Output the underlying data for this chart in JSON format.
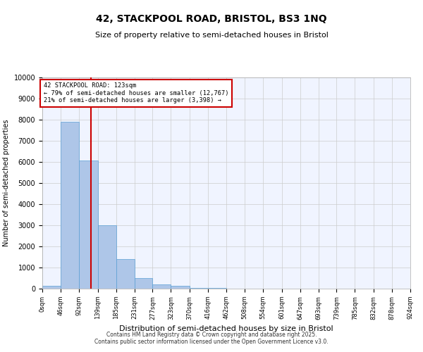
{
  "title_line1": "42, STACKPOOL ROAD, BRISTOL, BS3 1NQ",
  "title_line2": "Size of property relative to semi-detached houses in Bristol",
  "xlabel": "Distribution of semi-detached houses by size in Bristol",
  "ylabel": "Number of semi-detached properties",
  "bar_color": "#aec6e8",
  "bar_edge_color": "#5a9fd4",
  "grid_color": "#cccccc",
  "background_color": "#ffffff",
  "plot_bg_color": "#f0f4ff",
  "annotation_box_color": "#cc0000",
  "vline_color": "#cc0000",
  "annotation_title": "42 STACKPOOL ROAD: 123sqm",
  "annotation_line1": "← 79% of semi-detached houses are smaller (12,767)",
  "annotation_line2": "21% of semi-detached houses are larger (3,398) →",
  "property_size": 123,
  "footer_line1": "Contains HM Land Registry data © Crown copyright and database right 2025.",
  "footer_line2": "Contains public sector information licensed under the Open Government Licence v3.0.",
  "bin_edges": [
    0,
    46,
    92,
    139,
    185,
    231,
    277,
    323,
    370,
    416,
    462,
    508,
    554,
    601,
    647,
    693,
    739,
    785,
    832,
    878,
    924
  ],
  "bin_labels": [
    "0sqm",
    "46sqm",
    "92sqm",
    "139sqm",
    "185sqm",
    "231sqm",
    "277sqm",
    "323sqm",
    "370sqm",
    "416sqm",
    "462sqm",
    "508sqm",
    "554sqm",
    "601sqm",
    "647sqm",
    "693sqm",
    "739sqm",
    "785sqm",
    "832sqm",
    "878sqm",
    "924sqm"
  ],
  "bar_heights": [
    120,
    7900,
    6050,
    3000,
    1400,
    500,
    200,
    120,
    50,
    30,
    15,
    8,
    5,
    3,
    2,
    1,
    1,
    0,
    0,
    0
  ],
  "ylim": [
    0,
    10000
  ],
  "yticks": [
    0,
    1000,
    2000,
    3000,
    4000,
    5000,
    6000,
    7000,
    8000,
    9000,
    10000
  ]
}
